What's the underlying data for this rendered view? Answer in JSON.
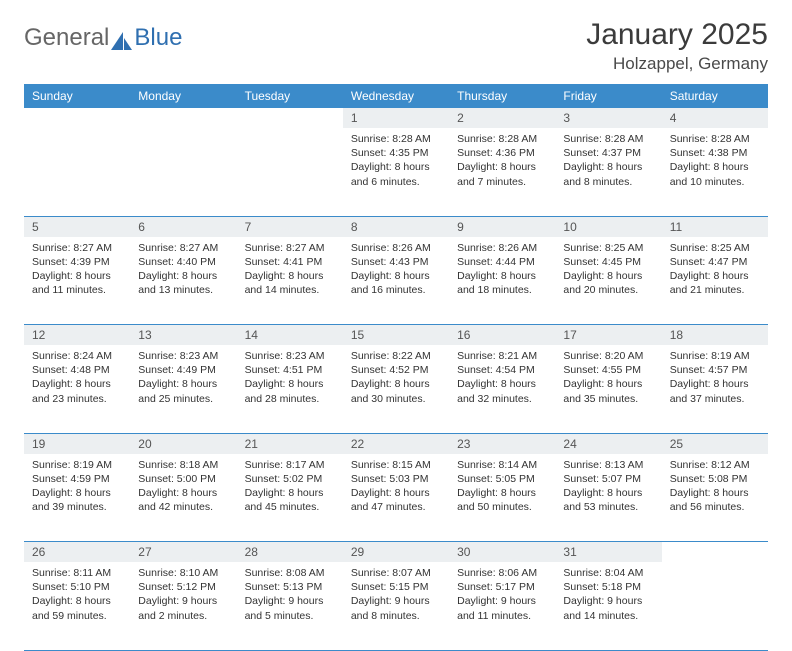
{
  "logo": {
    "part1": "General",
    "part2": "Blue"
  },
  "title": "January 2025",
  "location": "Holzappel, Germany",
  "colors": {
    "header_bg": "#3b8bca",
    "header_text": "#ffffff",
    "daynum_bg": "#eceff1",
    "daynum_text": "#555555",
    "body_text": "#333333",
    "rule": "#3b8bca",
    "logo_general": "#666666",
    "logo_blue": "#2f6fb0"
  },
  "day_headers": [
    "Sunday",
    "Monday",
    "Tuesday",
    "Wednesday",
    "Thursday",
    "Friday",
    "Saturday"
  ],
  "weeks": [
    [
      null,
      null,
      null,
      {
        "n": "1",
        "sunrise": "8:28 AM",
        "sunset": "4:35 PM",
        "daylight": "8 hours and 6 minutes."
      },
      {
        "n": "2",
        "sunrise": "8:28 AM",
        "sunset": "4:36 PM",
        "daylight": "8 hours and 7 minutes."
      },
      {
        "n": "3",
        "sunrise": "8:28 AM",
        "sunset": "4:37 PM",
        "daylight": "8 hours and 8 minutes."
      },
      {
        "n": "4",
        "sunrise": "8:28 AM",
        "sunset": "4:38 PM",
        "daylight": "8 hours and 10 minutes."
      }
    ],
    [
      {
        "n": "5",
        "sunrise": "8:27 AM",
        "sunset": "4:39 PM",
        "daylight": "8 hours and 11 minutes."
      },
      {
        "n": "6",
        "sunrise": "8:27 AM",
        "sunset": "4:40 PM",
        "daylight": "8 hours and 13 minutes."
      },
      {
        "n": "7",
        "sunrise": "8:27 AM",
        "sunset": "4:41 PM",
        "daylight": "8 hours and 14 minutes."
      },
      {
        "n": "8",
        "sunrise": "8:26 AM",
        "sunset": "4:43 PM",
        "daylight": "8 hours and 16 minutes."
      },
      {
        "n": "9",
        "sunrise": "8:26 AM",
        "sunset": "4:44 PM",
        "daylight": "8 hours and 18 minutes."
      },
      {
        "n": "10",
        "sunrise": "8:25 AM",
        "sunset": "4:45 PM",
        "daylight": "8 hours and 20 minutes."
      },
      {
        "n": "11",
        "sunrise": "8:25 AM",
        "sunset": "4:47 PM",
        "daylight": "8 hours and 21 minutes."
      }
    ],
    [
      {
        "n": "12",
        "sunrise": "8:24 AM",
        "sunset": "4:48 PM",
        "daylight": "8 hours and 23 minutes."
      },
      {
        "n": "13",
        "sunrise": "8:23 AM",
        "sunset": "4:49 PM",
        "daylight": "8 hours and 25 minutes."
      },
      {
        "n": "14",
        "sunrise": "8:23 AM",
        "sunset": "4:51 PM",
        "daylight": "8 hours and 28 minutes."
      },
      {
        "n": "15",
        "sunrise": "8:22 AM",
        "sunset": "4:52 PM",
        "daylight": "8 hours and 30 minutes."
      },
      {
        "n": "16",
        "sunrise": "8:21 AM",
        "sunset": "4:54 PM",
        "daylight": "8 hours and 32 minutes."
      },
      {
        "n": "17",
        "sunrise": "8:20 AM",
        "sunset": "4:55 PM",
        "daylight": "8 hours and 35 minutes."
      },
      {
        "n": "18",
        "sunrise": "8:19 AM",
        "sunset": "4:57 PM",
        "daylight": "8 hours and 37 minutes."
      }
    ],
    [
      {
        "n": "19",
        "sunrise": "8:19 AM",
        "sunset": "4:59 PM",
        "daylight": "8 hours and 39 minutes."
      },
      {
        "n": "20",
        "sunrise": "8:18 AM",
        "sunset": "5:00 PM",
        "daylight": "8 hours and 42 minutes."
      },
      {
        "n": "21",
        "sunrise": "8:17 AM",
        "sunset": "5:02 PM",
        "daylight": "8 hours and 45 minutes."
      },
      {
        "n": "22",
        "sunrise": "8:15 AM",
        "sunset": "5:03 PM",
        "daylight": "8 hours and 47 minutes."
      },
      {
        "n": "23",
        "sunrise": "8:14 AM",
        "sunset": "5:05 PM",
        "daylight": "8 hours and 50 minutes."
      },
      {
        "n": "24",
        "sunrise": "8:13 AM",
        "sunset": "5:07 PM",
        "daylight": "8 hours and 53 minutes."
      },
      {
        "n": "25",
        "sunrise": "8:12 AM",
        "sunset": "5:08 PM",
        "daylight": "8 hours and 56 minutes."
      }
    ],
    [
      {
        "n": "26",
        "sunrise": "8:11 AM",
        "sunset": "5:10 PM",
        "daylight": "8 hours and 59 minutes."
      },
      {
        "n": "27",
        "sunrise": "8:10 AM",
        "sunset": "5:12 PM",
        "daylight": "9 hours and 2 minutes."
      },
      {
        "n": "28",
        "sunrise": "8:08 AM",
        "sunset": "5:13 PM",
        "daylight": "9 hours and 5 minutes."
      },
      {
        "n": "29",
        "sunrise": "8:07 AM",
        "sunset": "5:15 PM",
        "daylight": "9 hours and 8 minutes."
      },
      {
        "n": "30",
        "sunrise": "8:06 AM",
        "sunset": "5:17 PM",
        "daylight": "9 hours and 11 minutes."
      },
      {
        "n": "31",
        "sunrise": "8:04 AM",
        "sunset": "5:18 PM",
        "daylight": "9 hours and 14 minutes."
      },
      null
    ]
  ],
  "labels": {
    "sunrise": "Sunrise: ",
    "sunset": "Sunset: ",
    "daylight": "Daylight: "
  }
}
